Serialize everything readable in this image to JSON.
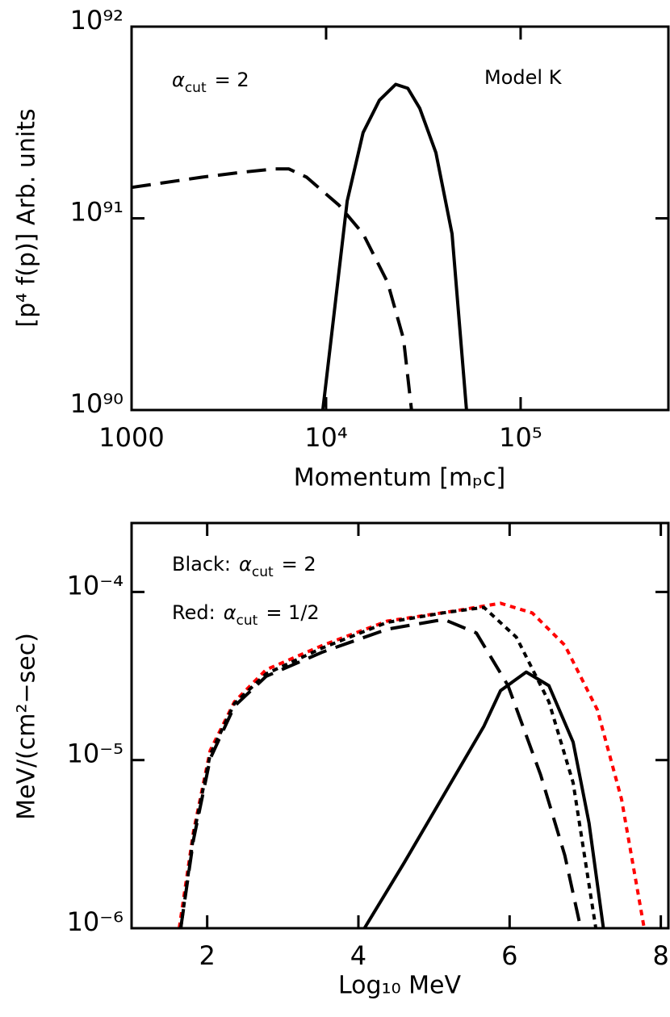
{
  "chart_data": [
    {
      "type": "line",
      "xscale": "log",
      "yscale": "log",
      "xlabel": "Momentum [mₚc]",
      "ylabel": "[p⁴ f(p)] Arb. units",
      "xlim": [
        1000,
        575000
      ],
      "ylim": [
        1e+90,
        1e+92
      ],
      "xticks": [
        1000,
        {
          "value": 10000,
          "label": "10⁴"
        },
        {
          "value": 100000,
          "label": "10⁵"
        }
      ],
      "yticks": [
        {
          "value": 1e+90,
          "label": "10⁹⁰"
        },
        {
          "value": 1e+91,
          "label": "10⁹¹"
        },
        {
          "value": 1e+92,
          "label": "10⁹²"
        }
      ],
      "annotations": [
        {
          "symbol": "α",
          "subscript": "cut",
          "text": "= 2"
        },
        {
          "text": "Model K"
        }
      ],
      "series": [
        {
          "color": "#000000",
          "dash": "dashed",
          "x": [
            1000,
            2300,
            3700,
            5420,
            6440,
            7940,
            11650,
            15500,
            20700,
            25000,
            27500
          ],
          "values": [
            1.45e+91,
            1.64e+91,
            1.74e+91,
            1.81e+91,
            1.81e+91,
            1.64e+91,
            1.17e+91,
            8.3e+90,
            4.64e+90,
            2.35e+90,
            1e+90
          ]
        },
        {
          "color": "#000000",
          "dash": "solid",
          "x": [
            9620,
            11100,
            12840,
            15500,
            18800,
            22800,
            26300,
            30300,
            36700,
            44400,
            52700
          ],
          "values": [
            1e+90,
            3.47e+90,
            1.23e+91,
            2.8e+91,
            4.13e+91,
            5e+91,
            4.77e+91,
            3.75e+91,
            2.2e+91,
            8.3e+90,
            1e+90
          ]
        }
      ]
    },
    {
      "type": "line",
      "yscale": "log",
      "xlabel": "Log₁₀ MeV",
      "ylabel": "MeV/(cm²−sec)",
      "xlim": [
        1,
        8.1
      ],
      "ylim": [
        1e-06,
        0.000257
      ],
      "xticks": [
        2,
        4,
        6,
        8
      ],
      "yticks": [
        {
          "value": 1e-06,
          "label": "10⁻⁶"
        },
        {
          "value": 1e-05,
          "label": "10⁻⁵"
        },
        {
          "value": 0.0001,
          "label": "10⁻⁴"
        }
      ],
      "annotations": [
        {
          "prefix": "Black:",
          "symbol": "α",
          "subscript": "cut",
          "text": "= 2"
        },
        {
          "prefix": "Red:",
          "symbol": "α",
          "subscript": "cut",
          "text": "= 1/2"
        }
      ],
      "series": [
        {
          "color": "#ff0000",
          "dash": "dotted",
          "x": [
            1.63,
            1.82,
            2.04,
            2.36,
            2.78,
            3.53,
            4.38,
            5.24,
            5.88,
            6.3,
            6.73,
            7.16,
            7.48,
            7.78
          ],
          "values": [
            1e-06,
            3.78e-06,
            1.14e-05,
            2.22e-05,
            3.45e-05,
            4.82e-05,
            6.71e-05,
            7.67e-05,
            8.57e-05,
            7.5e-05,
            4.82e-05,
            1.99e-05,
            5.87e-06,
            1e-06
          ]
        },
        {
          "color": "#000000",
          "dash": "dotted",
          "x": [
            1.65,
            1.82,
            2.04,
            2.36,
            2.78,
            3.53,
            4.38,
            5.13,
            5.66,
            6.09,
            6.52,
            6.84,
            7.14
          ],
          "values": [
            1e-06,
            3.58e-06,
            1.08e-05,
            2.17e-05,
            3.26e-05,
            4.66e-05,
            6.59e-05,
            7.52e-05,
            8.1e-05,
            5.38e-05,
            2.22e-05,
            7.33e-06,
            1e-06
          ]
        },
        {
          "color": "#000000",
          "dash": "dashed",
          "x": [
            1.65,
            1.82,
            2.04,
            2.36,
            2.78,
            3.53,
            4.38,
            5.13,
            5.56,
            5.98,
            6.41,
            6.73,
            6.94
          ],
          "values": [
            1e-06,
            3.38e-06,
            1.02e-05,
            2.09e-05,
            3.15e-05,
            4.4e-05,
            6e-05,
            6.87e-05,
            5.7e-05,
            2.77e-05,
            8.18e-06,
            2.71e-06,
            1e-06
          ]
        },
        {
          "color": "#000000",
          "dash": "solid",
          "x": [
            4.08,
            4.6,
            5.13,
            5.66,
            5.88,
            6.22,
            6.52,
            6.84,
            7.05,
            7.24
          ],
          "values": [
            1e-06,
            2.43e-06,
            6.2e-06,
            1.59e-05,
            2.59e-05,
            3.34e-05,
            2.77e-05,
            1.28e-05,
            4.22e-06,
            1e-06
          ]
        }
      ]
    }
  ]
}
